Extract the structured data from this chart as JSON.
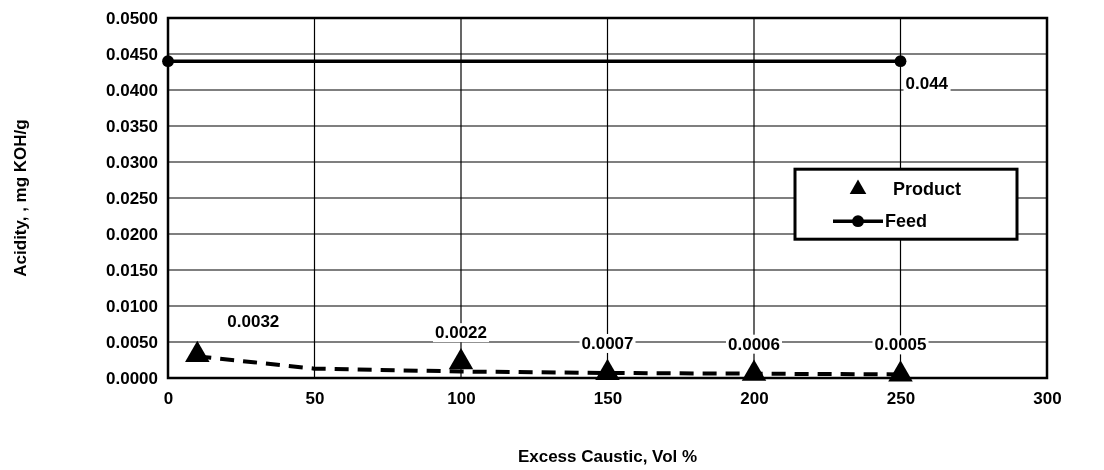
{
  "chart_data": {
    "type": "scatter",
    "xlabel": "Excess Caustic, Vol %",
    "ylabel": "Acidity, , mg KOH/g",
    "xlim": [
      0,
      300
    ],
    "xticks": [
      0,
      50,
      100,
      150,
      200,
      250,
      300
    ],
    "ylim": [
      0,
      0.05
    ],
    "yticks": [
      {
        "value": 0,
        "label": "0.0000"
      },
      {
        "value": 0.005,
        "label": "0.0050"
      },
      {
        "value": 0.01,
        "label": "0.0100"
      },
      {
        "value": 0.015,
        "label": "0.0150"
      },
      {
        "value": 0.02,
        "label": "0.0200"
      },
      {
        "value": 0.025,
        "label": "0.0250"
      },
      {
        "value": 0.03,
        "label": "0.0300"
      },
      {
        "value": 0.035,
        "label": "0.0350"
      },
      {
        "value": 0.04,
        "label": "0.0400"
      },
      {
        "value": 0.045,
        "label": "0.0450"
      },
      {
        "value": 0.05,
        "label": "0.0500"
      }
    ],
    "grid": true,
    "legend": "right",
    "series": [
      {
        "name": "Product",
        "marker": "triangle",
        "color": "#000000",
        "x": [
          10,
          100,
          150,
          200,
          250
        ],
        "values": [
          0.0032,
          0.0022,
          0.0007,
          0.0006,
          0.0005
        ],
        "value_labels": [
          "0.0032",
          "0.0022",
          "0.0007",
          "0.0006",
          "0.0005"
        ]
      },
      {
        "name": "Feed",
        "type": "line",
        "marker": "circle",
        "line_style": "solid",
        "color": "#000000",
        "x": [
          0,
          250
        ],
        "values": [
          0.044,
          0.044
        ],
        "value_labels": [
          null,
          "0.044"
        ]
      },
      {
        "type": "line",
        "marker": "none",
        "line_style": "dashed",
        "color": "#000000",
        "x": [
          10,
          50,
          100,
          150,
          200,
          250
        ],
        "values": [
          0.003,
          0.0013,
          0.0009,
          0.0007,
          0.0006,
          0.0005
        ]
      }
    ]
  }
}
